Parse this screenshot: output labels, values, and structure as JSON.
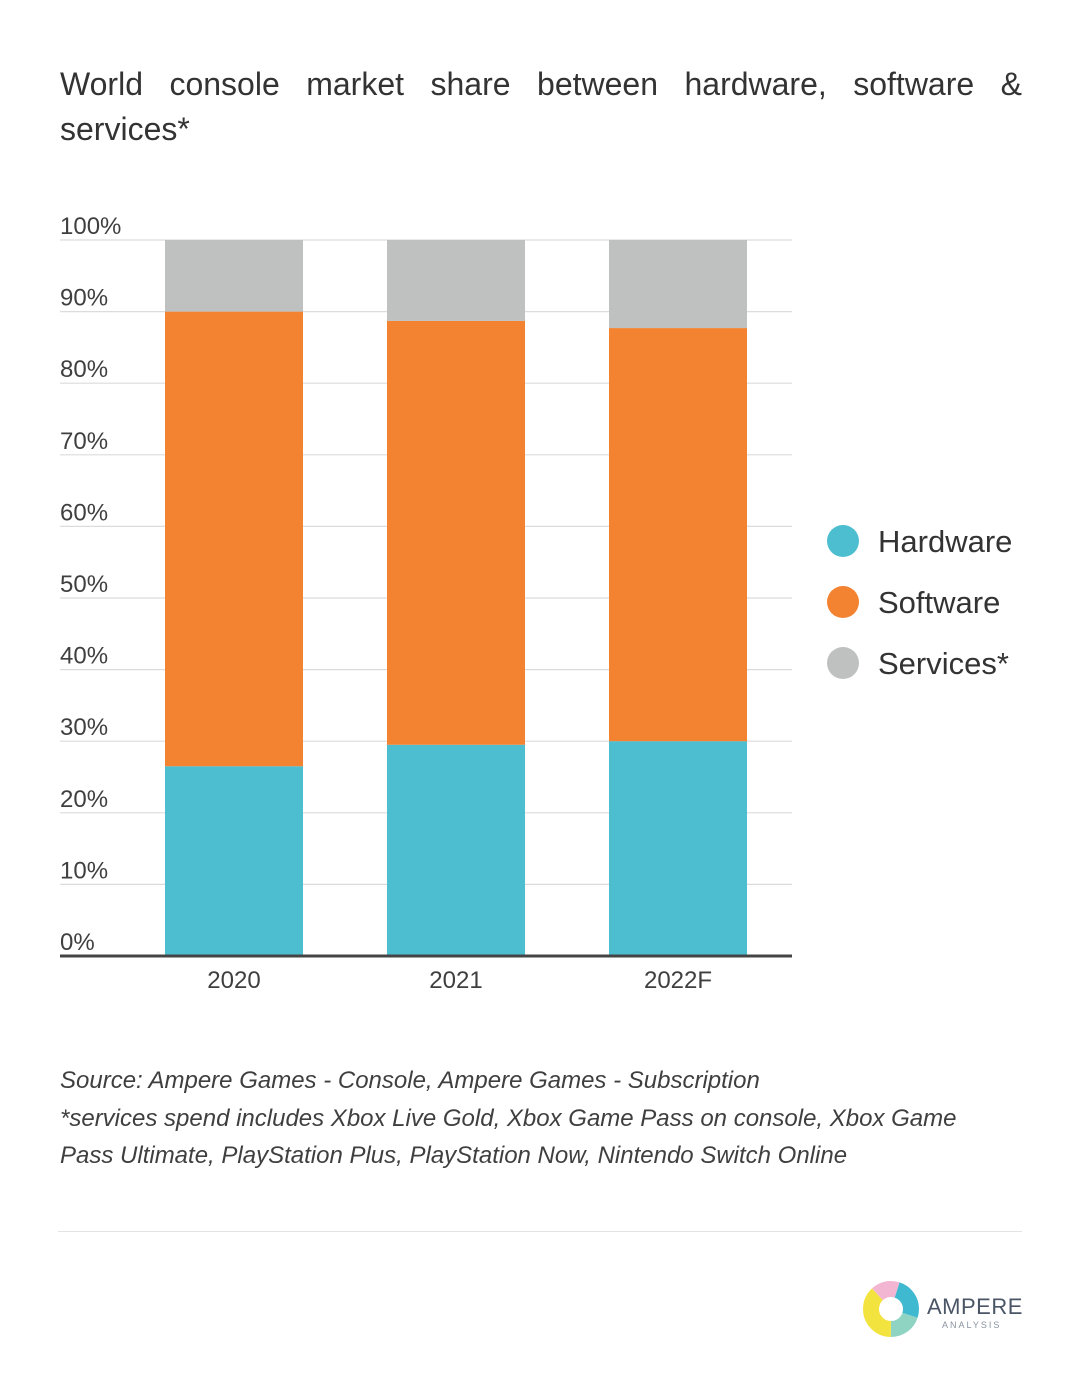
{
  "chart_data": {
    "type": "bar",
    "stacked": true,
    "title": "World console market share between hardware, software & services*",
    "categories": [
      "2020",
      "2021",
      "2022F"
    ],
    "series": [
      {
        "name": "Hardware",
        "values": [
          26.5,
          29.5,
          30
        ],
        "color": "#4cbed0"
      },
      {
        "name": "Software",
        "values": [
          63.5,
          59.2,
          57.7
        ],
        "color": "#f38231"
      },
      {
        "name": "Services*",
        "values": [
          10,
          11.3,
          12.3
        ],
        "color": "#bfc1c1"
      }
    ],
    "ylim": [
      0,
      100
    ],
    "yticks": [
      "0%",
      "10%",
      "20%",
      "30%",
      "40%",
      "50%",
      "60%",
      "70%",
      "80%",
      "90%",
      "100%"
    ],
    "xlabel": "",
    "ylabel": "",
    "grid": true,
    "legend": "right"
  },
  "notes": {
    "source": "Source: Ampere Games - Console, Ampere Games - Subscription",
    "services_line1": "*services spend includes Xbox Live Gold, Xbox Game Pass on console, Xbox Game",
    "services_line2": "Pass Ultimate, PlayStation Plus, PlayStation Now, Nintendo Switch Online"
  },
  "logo": {
    "name": "AMPERE",
    "sub": "ANALYSIS",
    "colors": [
      "#8fd3c3",
      "#f3e33f",
      "#f2b6d3",
      "#3fb9cf"
    ]
  }
}
